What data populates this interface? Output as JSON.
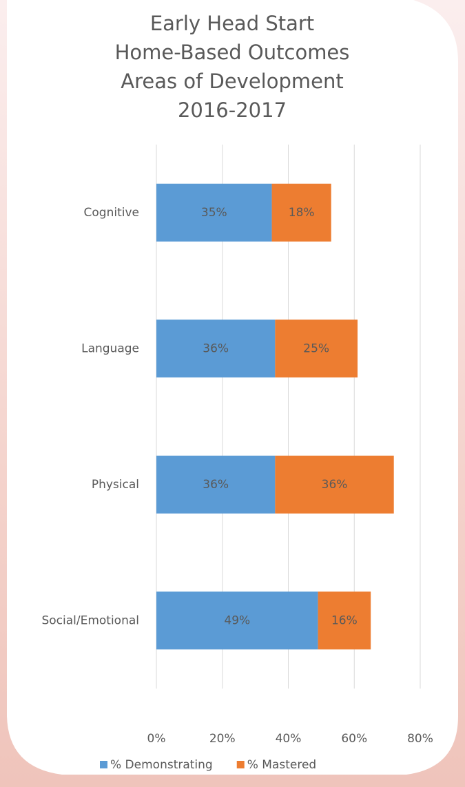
{
  "chart_data": {
    "type": "stacked-bar-horizontal",
    "title": [
      "Early Head Start",
      "Home-Based Outcomes",
      "Areas of Development",
      "2016-2017"
    ],
    "categories": [
      "Cognitive",
      "Language",
      "Physical",
      "Social/Emotional"
    ],
    "series": [
      {
        "name": "% Demonstrating",
        "color": "#5b9bd5",
        "values": [
          35,
          36,
          36,
          49
        ],
        "value_labels": [
          "35%",
          "36%",
          "36%",
          "49%"
        ]
      },
      {
        "name": "% Mastered",
        "color": "#ed7d31",
        "values": [
          18,
          25,
          36,
          16
        ],
        "value_labels": [
          "18%",
          "25%",
          "36%",
          "16%"
        ]
      }
    ],
    "xlim": [
      0,
      80
    ],
    "xticks": [
      {
        "value": 0,
        "label": "0%"
      },
      {
        "value": 20,
        "label": "20%"
      },
      {
        "value": 40,
        "label": "40%"
      },
      {
        "value": 60,
        "label": "60%"
      },
      {
        "value": 80,
        "label": "80%"
      }
    ],
    "grid": true,
    "legend": "bottom"
  }
}
